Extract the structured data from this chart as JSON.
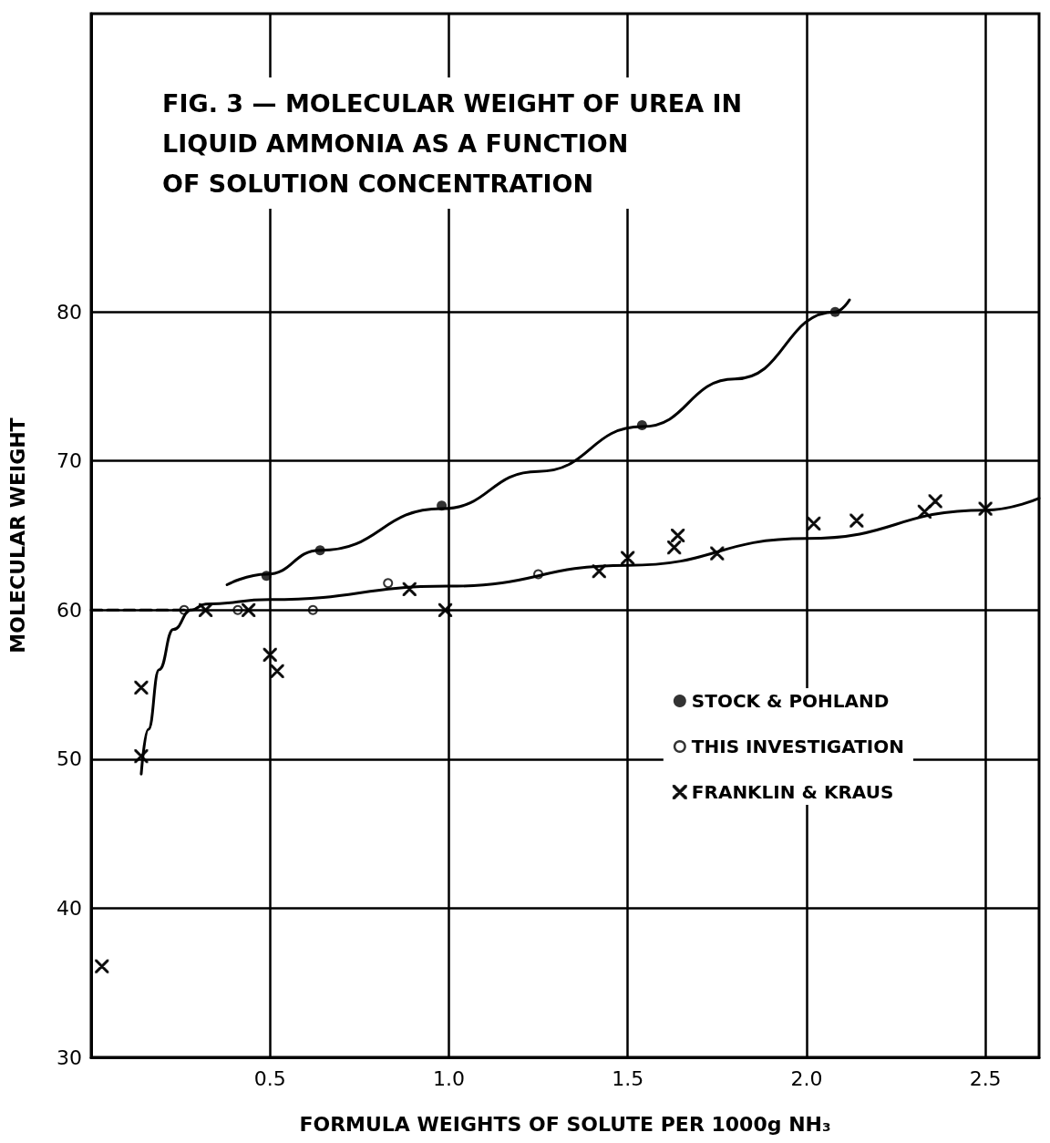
{
  "chart_data": {
    "type": "scatter",
    "title": "FIG. 3 — MOLECULAR WEIGHT OF UREA IN\nLIQUID AMMONIA AS A FUNCTION\nOF SOLUTION CONCENTRATION",
    "xlabel": "FORMULA WEIGHTS OF SOLUTE PER 1000g NH₃",
    "ylabel": "MOLECULAR WEIGHT",
    "xlim": [
      0,
      2.65
    ],
    "ylim": [
      30,
      100
    ],
    "xticks": [
      0.5,
      {
        "value": 1,
        "label": "1.0"
      },
      1.5,
      {
        "value": 2,
        "label": "2.0"
      },
      2.5
    ],
    "yticks": [
      30,
      40,
      50,
      60,
      70,
      80
    ],
    "grid": true,
    "legend": "right",
    "series": [
      {
        "name": "STOCK & POHLAND",
        "color": "#000000",
        "marker": "circle",
        "x": [
          0.49,
          0.64,
          0.98,
          1.54,
          2.08
        ],
        "values": [
          62.3,
          64,
          67,
          72.4,
          80
        ]
      },
      {
        "name": "THIS INVESTIGATION",
        "color": "#000000",
        "marker": "circle-open",
        "x": [
          0.26,
          0.41,
          0.62,
          0.83,
          1.25
        ],
        "values": [
          60,
          60,
          60,
          61.8,
          62.4
        ]
      },
      {
        "name": "FRANKLIN & KRAUS",
        "color": "#000000",
        "marker": "cross",
        "x": [
          0.03,
          0.14,
          0.14,
          0.32,
          0.44,
          0.5,
          0.52,
          0.89,
          0.99,
          1.42,
          1.5,
          1.63,
          1.64,
          1.75,
          2.02,
          2.14,
          2.33,
          2.36,
          2.5
        ],
        "values": [
          36.1,
          54.8,
          50.2,
          60,
          60,
          57,
          55.9,
          61.4,
          60,
          62.6,
          63.5,
          64.2,
          65,
          63.8,
          65.8,
          66,
          66.6,
          67.3,
          66.8
        ]
      },
      {
        "type": "line",
        "color": "#000000",
        "marker": "none",
        "line_style": "solid",
        "x": [
          0.38,
          0.49,
          0.64,
          0.98,
          1.25,
          1.54,
          1.8,
          2.08,
          2.12
        ],
        "values": [
          61.7,
          62.4,
          64,
          66.8,
          69.3,
          72.3,
          75.5,
          80,
          80.8
        ]
      },
      {
        "type": "line",
        "color": "#000000",
        "marker": "none",
        "line_style": "solid",
        "x": [
          0.14,
          0.16,
          0.19,
          0.23,
          0.28,
          0.32,
          0.5,
          1.0,
          1.5,
          2.0,
          2.5,
          2.65
        ],
        "values": [
          49,
          52,
          56,
          58.7,
          60,
          60.4,
          60.7,
          61.6,
          63,
          64.8,
          66.7,
          67.5
        ]
      },
      {
        "type": "line",
        "color": "#000000",
        "marker": "none",
        "line_style": "dashed",
        "x": [
          0,
          0.28
        ],
        "values": [
          60,
          60
        ]
      }
    ]
  }
}
